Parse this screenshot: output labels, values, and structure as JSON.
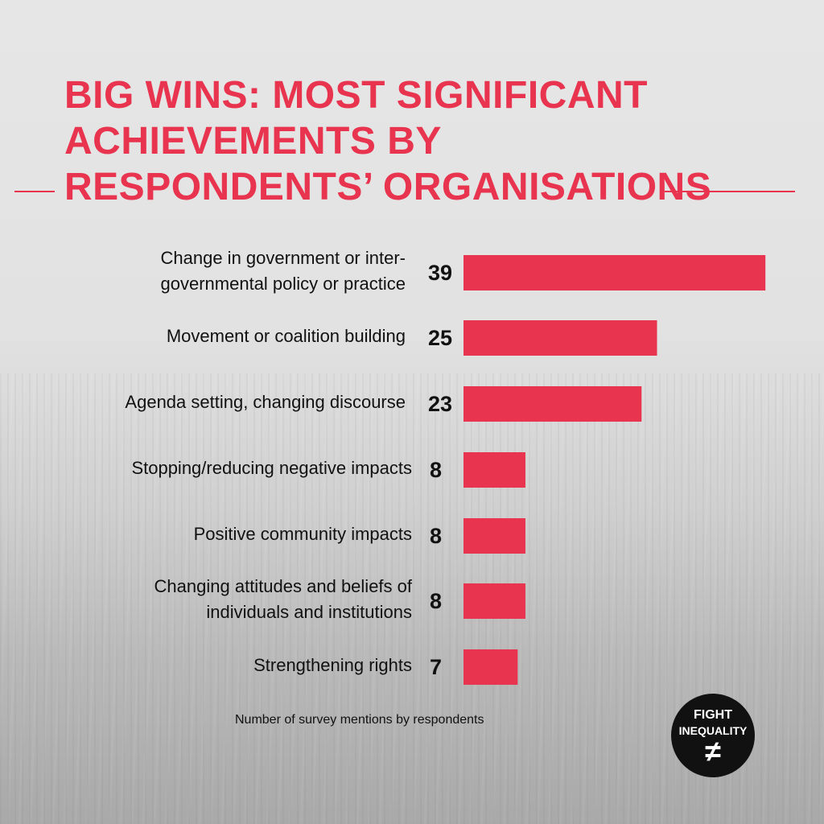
{
  "title_lines": [
    "BIG WINS: MOST SIGNIFICANT",
    "ACHIEVEMENTS BY",
    "RESPONDENTS’ ORGANISATIONS"
  ],
  "chart_data": {
    "type": "bar",
    "orientation": "horizontal",
    "categories": [
      [
        "Change in government or inter-",
        "governmental policy or practice"
      ],
      [
        "Movement or coalition building"
      ],
      [
        "Agenda setting, changing discourse"
      ],
      [
        "Stopping/reducing negative impacts"
      ],
      [
        "Positive community impacts"
      ],
      [
        "Changing attitudes and beliefs of",
        "individuals and institutions"
      ],
      [
        "Strengthening rights"
      ]
    ],
    "values": [
      39,
      25,
      23,
      8,
      8,
      8,
      7
    ],
    "xlabel": "Number of survey mentions by respondents",
    "bar_color": "#e8344e",
    "grid": false
  },
  "logo": {
    "line1": "FIGHT",
    "line2": "INEQUALITY",
    "symbol": "≠"
  }
}
